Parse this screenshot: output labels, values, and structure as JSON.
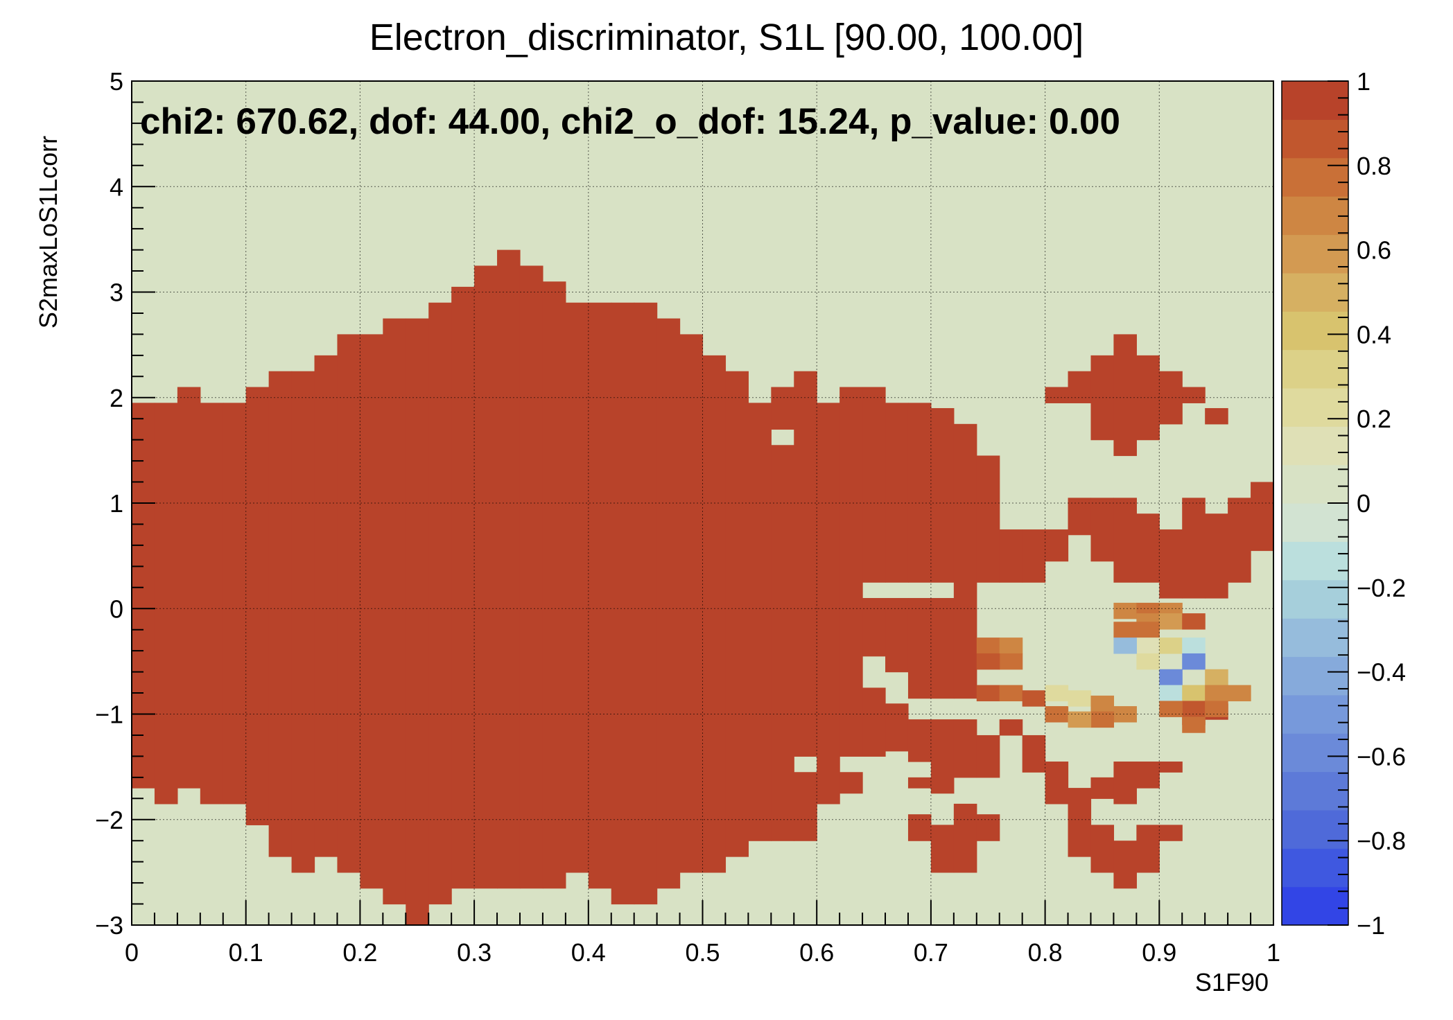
{
  "chart_data": {
    "type": "heatmap",
    "title": "Electron_discriminator, S1L [90.00, 100.00]",
    "xlabel": "S1F90",
    "ylabel": "S2maxLoS1Lcorr",
    "annotation": "chi2: 670.62, dof: 44.00, chi2_o_dof: 15.24, p_value: 0.00",
    "xlim": [
      0,
      1
    ],
    "ylim": [
      -3,
      5
    ],
    "zlim": [
      -1,
      1
    ],
    "x_ticks": [
      "0",
      "0.1",
      "0.2",
      "0.3",
      "0.4",
      "0.5",
      "0.6",
      "0.7",
      "0.8",
      "0.9",
      "1"
    ],
    "y_ticks": [
      "−3",
      "−2",
      "−1",
      "0",
      "1",
      "2",
      "3",
      "4",
      "5"
    ],
    "z_ticks": [
      "−1",
      "−0.8",
      "−0.6",
      "−0.4",
      "−0.2",
      "0",
      "0.2",
      "0.4",
      "0.6",
      "0.8",
      "1"
    ],
    "grid": true,
    "bins": {
      "nx": 50,
      "ny": 80,
      "x_range": [
        0,
        1
      ],
      "y_range": [
        -3,
        5
      ]
    },
    "background_value": 0,
    "palette": [
      "#3245e6",
      "#3f58e0",
      "#4f6ad9",
      "#5d7ad8",
      "#6b8ad9",
      "#7799db",
      "#86aadb",
      "#96bcdc",
      "#a6cfdb",
      "#bbdfdd",
      "#d2e3d2",
      "#d8e2c5",
      "#dfe0b6",
      "#dfda9e",
      "#dcd188",
      "#d8c36e",
      "#d6b062",
      "#d39a52",
      "#ce8643",
      "#c97037",
      "#c1572e",
      "#b8432a"
    ],
    "regions": [
      {
        "value": 1.0,
        "columns": [
          {
            "x0": 0.0,
            "x1": 0.02,
            "y": [
              [
                -1.7,
                1.95
              ]
            ]
          },
          {
            "x0": 0.02,
            "x1": 0.04,
            "y": [
              [
                -1.85,
                1.95
              ]
            ]
          },
          {
            "x0": 0.04,
            "x1": 0.06,
            "y": [
              [
                -1.7,
                2.1
              ]
            ]
          },
          {
            "x0": 0.06,
            "x1": 0.08,
            "y": [
              [
                -1.85,
                1.95
              ]
            ]
          },
          {
            "x0": 0.08,
            "x1": 0.1,
            "y": [
              [
                -1.85,
                1.95
              ]
            ]
          },
          {
            "x0": 0.1,
            "x1": 0.12,
            "y": [
              [
                -2.05,
                2.1
              ]
            ]
          },
          {
            "x0": 0.12,
            "x1": 0.14,
            "y": [
              [
                -2.35,
                2.25
              ]
            ]
          },
          {
            "x0": 0.14,
            "x1": 0.16,
            "y": [
              [
                -2.5,
                2.25
              ]
            ]
          },
          {
            "x0": 0.16,
            "x1": 0.18,
            "y": [
              [
                -2.35,
                2.4
              ]
            ]
          },
          {
            "x0": 0.18,
            "x1": 0.2,
            "y": [
              [
                -2.5,
                2.6
              ]
            ]
          },
          {
            "x0": 0.2,
            "x1": 0.22,
            "y": [
              [
                -2.65,
                2.6
              ]
            ]
          },
          {
            "x0": 0.22,
            "x1": 0.24,
            "y": [
              [
                -2.8,
                2.75
              ]
            ]
          },
          {
            "x0": 0.24,
            "x1": 0.26,
            "y": [
              [
                -3.0,
                2.75
              ]
            ]
          },
          {
            "x0": 0.26,
            "x1": 0.28,
            "y": [
              [
                -2.8,
                2.9
              ]
            ]
          },
          {
            "x0": 0.28,
            "x1": 0.3,
            "y": [
              [
                -2.65,
                3.05
              ]
            ]
          },
          {
            "x0": 0.3,
            "x1": 0.32,
            "y": [
              [
                -2.65,
                3.25
              ]
            ]
          },
          {
            "x0": 0.32,
            "x1": 0.34,
            "y": [
              [
                -2.65,
                3.4
              ]
            ]
          },
          {
            "x0": 0.34,
            "x1": 0.36,
            "y": [
              [
                -2.65,
                3.25
              ]
            ]
          },
          {
            "x0": 0.36,
            "x1": 0.38,
            "y": [
              [
                -2.65,
                3.1
              ]
            ]
          },
          {
            "x0": 0.38,
            "x1": 0.4,
            "y": [
              [
                -2.5,
                2.9
              ]
            ]
          },
          {
            "x0": 0.4,
            "x1": 0.42,
            "y": [
              [
                -2.65,
                2.9
              ]
            ]
          },
          {
            "x0": 0.42,
            "x1": 0.44,
            "y": [
              [
                -2.8,
                2.9
              ]
            ]
          },
          {
            "x0": 0.44,
            "x1": 0.46,
            "y": [
              [
                -2.8,
                2.9
              ]
            ]
          },
          {
            "x0": 0.46,
            "x1": 0.48,
            "y": [
              [
                -2.65,
                2.75
              ]
            ]
          },
          {
            "x0": 0.48,
            "x1": 0.5,
            "y": [
              [
                -2.5,
                2.6
              ]
            ]
          },
          {
            "x0": 0.5,
            "x1": 0.52,
            "y": [
              [
                -2.5,
                2.4
              ]
            ]
          },
          {
            "x0": 0.52,
            "x1": 0.54,
            "y": [
              [
                -2.35,
                2.25
              ]
            ]
          },
          {
            "x0": 0.54,
            "x1": 0.56,
            "y": [
              [
                -2.2,
                1.95
              ]
            ]
          },
          {
            "x0": 0.56,
            "x1": 0.58,
            "y": [
              [
                -2.2,
                1.55
              ],
              [
                1.7,
                2.1
              ]
            ]
          },
          {
            "x0": 0.58,
            "x1": 0.6,
            "y": [
              [
                -2.2,
                -1.55
              ],
              [
                -1.4,
                2.25
              ]
            ]
          },
          {
            "x0": 0.6,
            "x1": 0.62,
            "y": [
              [
                -1.85,
                1.95
              ]
            ]
          },
          {
            "x0": 0.62,
            "x1": 0.64,
            "y": [
              [
                -1.75,
                -1.55
              ],
              [
                -1.4,
                2.1
              ]
            ]
          },
          {
            "x0": 0.64,
            "x1": 0.66,
            "y": [
              [
                -1.4,
                -0.75
              ],
              [
                -0.45,
                0.1
              ],
              [
                0.25,
                2.1
              ]
            ]
          },
          {
            "x0": 0.66,
            "x1": 0.68,
            "y": [
              [
                -1.35,
                -0.9
              ],
              [
                -0.6,
                0.1
              ],
              [
                0.25,
                1.95
              ]
            ]
          },
          {
            "x0": 0.68,
            "x1": 0.7,
            "y": [
              [
                -2.2,
                -1.95
              ],
              [
                -1.7,
                -1.6
              ],
              [
                -1.45,
                -1.05
              ],
              [
                -0.85,
                0.1
              ],
              [
                0.25,
                1.95
              ]
            ]
          },
          {
            "x0": 0.7,
            "x1": 0.72,
            "y": [
              [
                -2.5,
                -2.05
              ],
              [
                -1.75,
                -1.05
              ],
              [
                -0.85,
                0.1
              ],
              [
                0.25,
                1.9
              ]
            ]
          },
          {
            "x0": 0.72,
            "x1": 0.74,
            "y": [
              [
                -2.5,
                -1.85
              ],
              [
                -1.6,
                -1.05
              ],
              [
                -0.85,
                1.75
              ]
            ]
          },
          {
            "x0": 0.74,
            "x1": 0.76,
            "y": [
              [
                -2.2,
                -1.95
              ],
              [
                -1.6,
                -1.2
              ],
              [
                0.25,
                1.45
              ]
            ]
          },
          {
            "x0": 0.76,
            "x1": 0.78,
            "y": [
              [
                -1.2,
                -1.05
              ],
              [
                0.25,
                0.75
              ]
            ]
          },
          {
            "x0": 0.78,
            "x1": 0.8,
            "y": [
              [
                -1.55,
                -1.2
              ],
              [
                0.25,
                0.75
              ]
            ]
          },
          {
            "x0": 0.8,
            "x1": 0.82,
            "y": [
              [
                -1.85,
                -1.45
              ],
              [
                0.45,
                0.75
              ],
              [
                1.95,
                2.1
              ]
            ]
          },
          {
            "x0": 0.82,
            "x1": 0.84,
            "y": [
              [
                -2.35,
                -1.7
              ],
              [
                0.7,
                1.05
              ],
              [
                1.95,
                2.25
              ]
            ]
          },
          {
            "x0": 0.84,
            "x1": 0.86,
            "y": [
              [
                -2.5,
                -2.05
              ],
              [
                -1.8,
                -1.6
              ],
              [
                0.45,
                1.05
              ],
              [
                1.6,
                2.4
              ]
            ]
          },
          {
            "x0": 0.86,
            "x1": 0.88,
            "y": [
              [
                -2.65,
                -2.2
              ],
              [
                -1.85,
                -1.45
              ],
              [
                0.25,
                1.05
              ],
              [
                1.45,
                2.6
              ]
            ]
          },
          {
            "x0": 0.88,
            "x1": 0.9,
            "y": [
              [
                -2.5,
                -2.05
              ],
              [
                -1.7,
                -1.45
              ],
              [
                0.25,
                0.9
              ],
              [
                1.6,
                2.4
              ]
            ]
          },
          {
            "x0": 0.9,
            "x1": 0.92,
            "y": [
              [
                -2.2,
                -2.05
              ],
              [
                -1.55,
                -1.45
              ],
              [
                0.1,
                0.75
              ],
              [
                1.75,
                2.25
              ]
            ]
          },
          {
            "x0": 0.92,
            "x1": 0.94,
            "y": [
              [
                -1.1,
                -0.9
              ],
              [
                0.1,
                1.05
              ],
              [
                1.95,
                2.1
              ]
            ]
          },
          {
            "x0": 0.94,
            "x1": 0.96,
            "y": [
              [
                -1.05,
                -0.9
              ],
              [
                0.1,
                0.9
              ],
              [
                1.75,
                1.9
              ]
            ]
          },
          {
            "x0": 0.96,
            "x1": 0.98,
            "y": [
              [
                0.25,
                1.05
              ]
            ]
          },
          {
            "x0": 0.98,
            "x1": 1.0,
            "y": [
              [
                0.55,
                1.2
              ]
            ]
          }
        ]
      }
    ],
    "cells": [
      {
        "x": 0.87,
        "y": -0.02,
        "v": 0.7
      },
      {
        "x": 0.89,
        "y": -0.02,
        "v": 0.85
      },
      {
        "x": 0.91,
        "y": -0.02,
        "v": 0.75
      },
      {
        "x": 0.89,
        "y": -0.12,
        "v": 0.75
      },
      {
        "x": 0.91,
        "y": -0.12,
        "v": 0.6
      },
      {
        "x": 0.93,
        "y": -0.12,
        "v": 0.9
      },
      {
        "x": 0.87,
        "y": -0.2,
        "v": 0.85
      },
      {
        "x": 0.89,
        "y": -0.2,
        "v": 0.85
      },
      {
        "x": 0.75,
        "y": -0.35,
        "v": 0.85
      },
      {
        "x": 0.77,
        "y": -0.35,
        "v": 0.75
      },
      {
        "x": 0.77,
        "y": -0.5,
        "v": 0.8
      },
      {
        "x": 0.75,
        "y": -0.5,
        "v": 0.95
      },
      {
        "x": 0.75,
        "y": -0.8,
        "v": 0.9
      },
      {
        "x": 0.77,
        "y": -0.8,
        "v": 0.8
      },
      {
        "x": 0.79,
        "y": -0.85,
        "v": 0.9
      },
      {
        "x": 0.81,
        "y": -1.0,
        "v": 0.8
      },
      {
        "x": 0.83,
        "y": -0.85,
        "v": 0.25
      },
      {
        "x": 0.85,
        "y": -0.9,
        "v": 0.7
      },
      {
        "x": 0.87,
        "y": -1.0,
        "v": 0.75
      },
      {
        "x": 0.89,
        "y": -0.35,
        "v": 0.1
      },
      {
        "x": 0.89,
        "y": -0.5,
        "v": 0.2
      },
      {
        "x": 0.87,
        "y": -0.35,
        "v": -0.3
      },
      {
        "x": 0.91,
        "y": -0.35,
        "v": 0.3
      },
      {
        "x": 0.93,
        "y": -0.35,
        "v": -0.1
      },
      {
        "x": 0.93,
        "y": -0.5,
        "v": -0.6
      },
      {
        "x": 0.91,
        "y": -0.65,
        "v": -0.6
      },
      {
        "x": 0.91,
        "y": -0.8,
        "v": -0.1
      },
      {
        "x": 0.93,
        "y": -0.8,
        "v": 0.4
      },
      {
        "x": 0.95,
        "y": -0.65,
        "v": 0.5
      },
      {
        "x": 0.95,
        "y": -0.8,
        "v": 0.75
      },
      {
        "x": 0.97,
        "y": -0.8,
        "v": 0.7
      },
      {
        "x": 0.93,
        "y": -0.95,
        "v": 0.95
      },
      {
        "x": 0.93,
        "y": -1.1,
        "v": 0.8
      },
      {
        "x": 0.95,
        "y": -0.95,
        "v": 0.8
      },
      {
        "x": 0.91,
        "y": -0.95,
        "v": 0.8
      },
      {
        "x": 0.81,
        "y": -0.8,
        "v": 0.25
      },
      {
        "x": 0.85,
        "y": -1.05,
        "v": 0.8
      },
      {
        "x": 0.83,
        "y": -1.05,
        "v": 0.65
      }
    ]
  }
}
